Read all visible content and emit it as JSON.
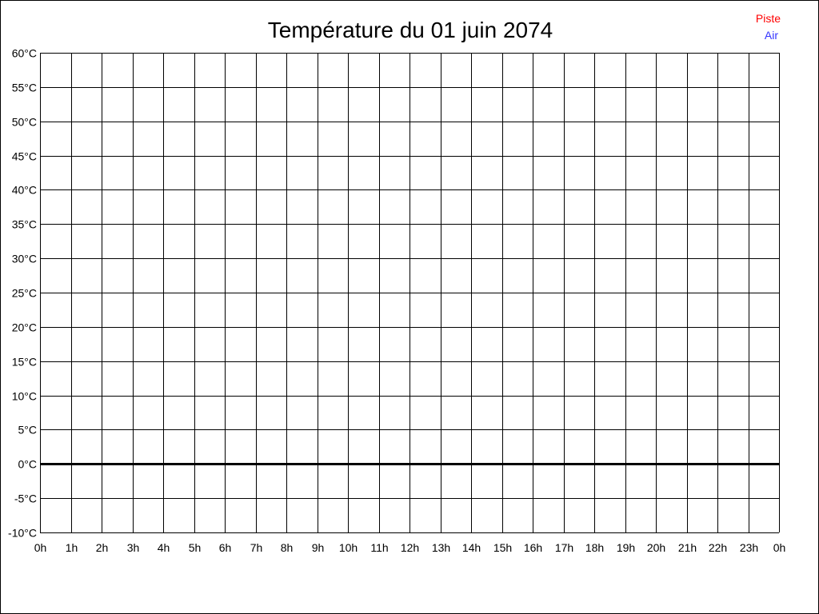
{
  "chart_data": {
    "type": "line",
    "title": "Température du 01 juin 2074",
    "xlabel": "",
    "ylabel": "",
    "x_ticks": [
      "0h",
      "1h",
      "2h",
      "3h",
      "4h",
      "5h",
      "6h",
      "7h",
      "8h",
      "9h",
      "10h",
      "11h",
      "12h",
      "13h",
      "14h",
      "15h",
      "16h",
      "17h",
      "18h",
      "19h",
      "20h",
      "21h",
      "22h",
      "23h",
      "0h"
    ],
    "y_ticks": [
      "60°C",
      "55°C",
      "50°C",
      "45°C",
      "40°C",
      "35°C",
      "30°C",
      "25°C",
      "20°C",
      "15°C",
      "10°C",
      "5°C",
      "0°C",
      "-5°C",
      "-10°C"
    ],
    "xlim": [
      0,
      24
    ],
    "ylim": [
      -10,
      60
    ],
    "y_step": 5,
    "grid": true,
    "legend_position": "top-right",
    "series": [
      {
        "name": "Piste",
        "color": "#ff0000",
        "values": []
      },
      {
        "name": "Air",
        "color": "#3333ff",
        "values": []
      }
    ]
  }
}
